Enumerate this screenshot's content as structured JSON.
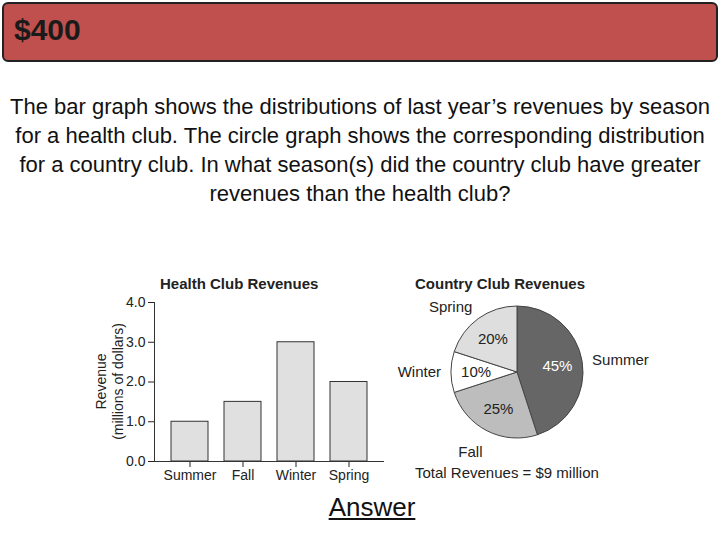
{
  "header": {
    "title": "$400"
  },
  "question": "The bar graph shows the distributions of last year’s revenues by season for a health club. The circle graph shows the corresponding distribution for a country club. In what season(s) did the country club have greater revenues than the health club?",
  "chart_data": [
    {
      "type": "bar",
      "title": "Health Club Revenues",
      "ylabel": "Revenue\n(millions of dollars)",
      "categories": [
        "Summer",
        "Fall",
        "Winter",
        "Spring"
      ],
      "values": [
        1,
        1.5,
        3,
        2
      ],
      "color": "#e0e0e0",
      "ylim": [
        0,
        4
      ],
      "yticks": [
        0,
        1,
        2,
        3,
        4
      ],
      "grid": false
    },
    {
      "type": "pie",
      "title": "Country Club Revenues",
      "categories": [
        "Summer",
        "Fall",
        "Winter",
        "Spring"
      ],
      "values": [
        45,
        25,
        10,
        20
      ],
      "value_labels": [
        "45%",
        "25%",
        "10%",
        "20%"
      ],
      "colors": [
        "#666666",
        "#bdbdbd",
        "#ffffff",
        "#dedede"
      ],
      "data_labels": true,
      "caption": "Total Revenues = $9 million"
    }
  ],
  "link": "Answer"
}
